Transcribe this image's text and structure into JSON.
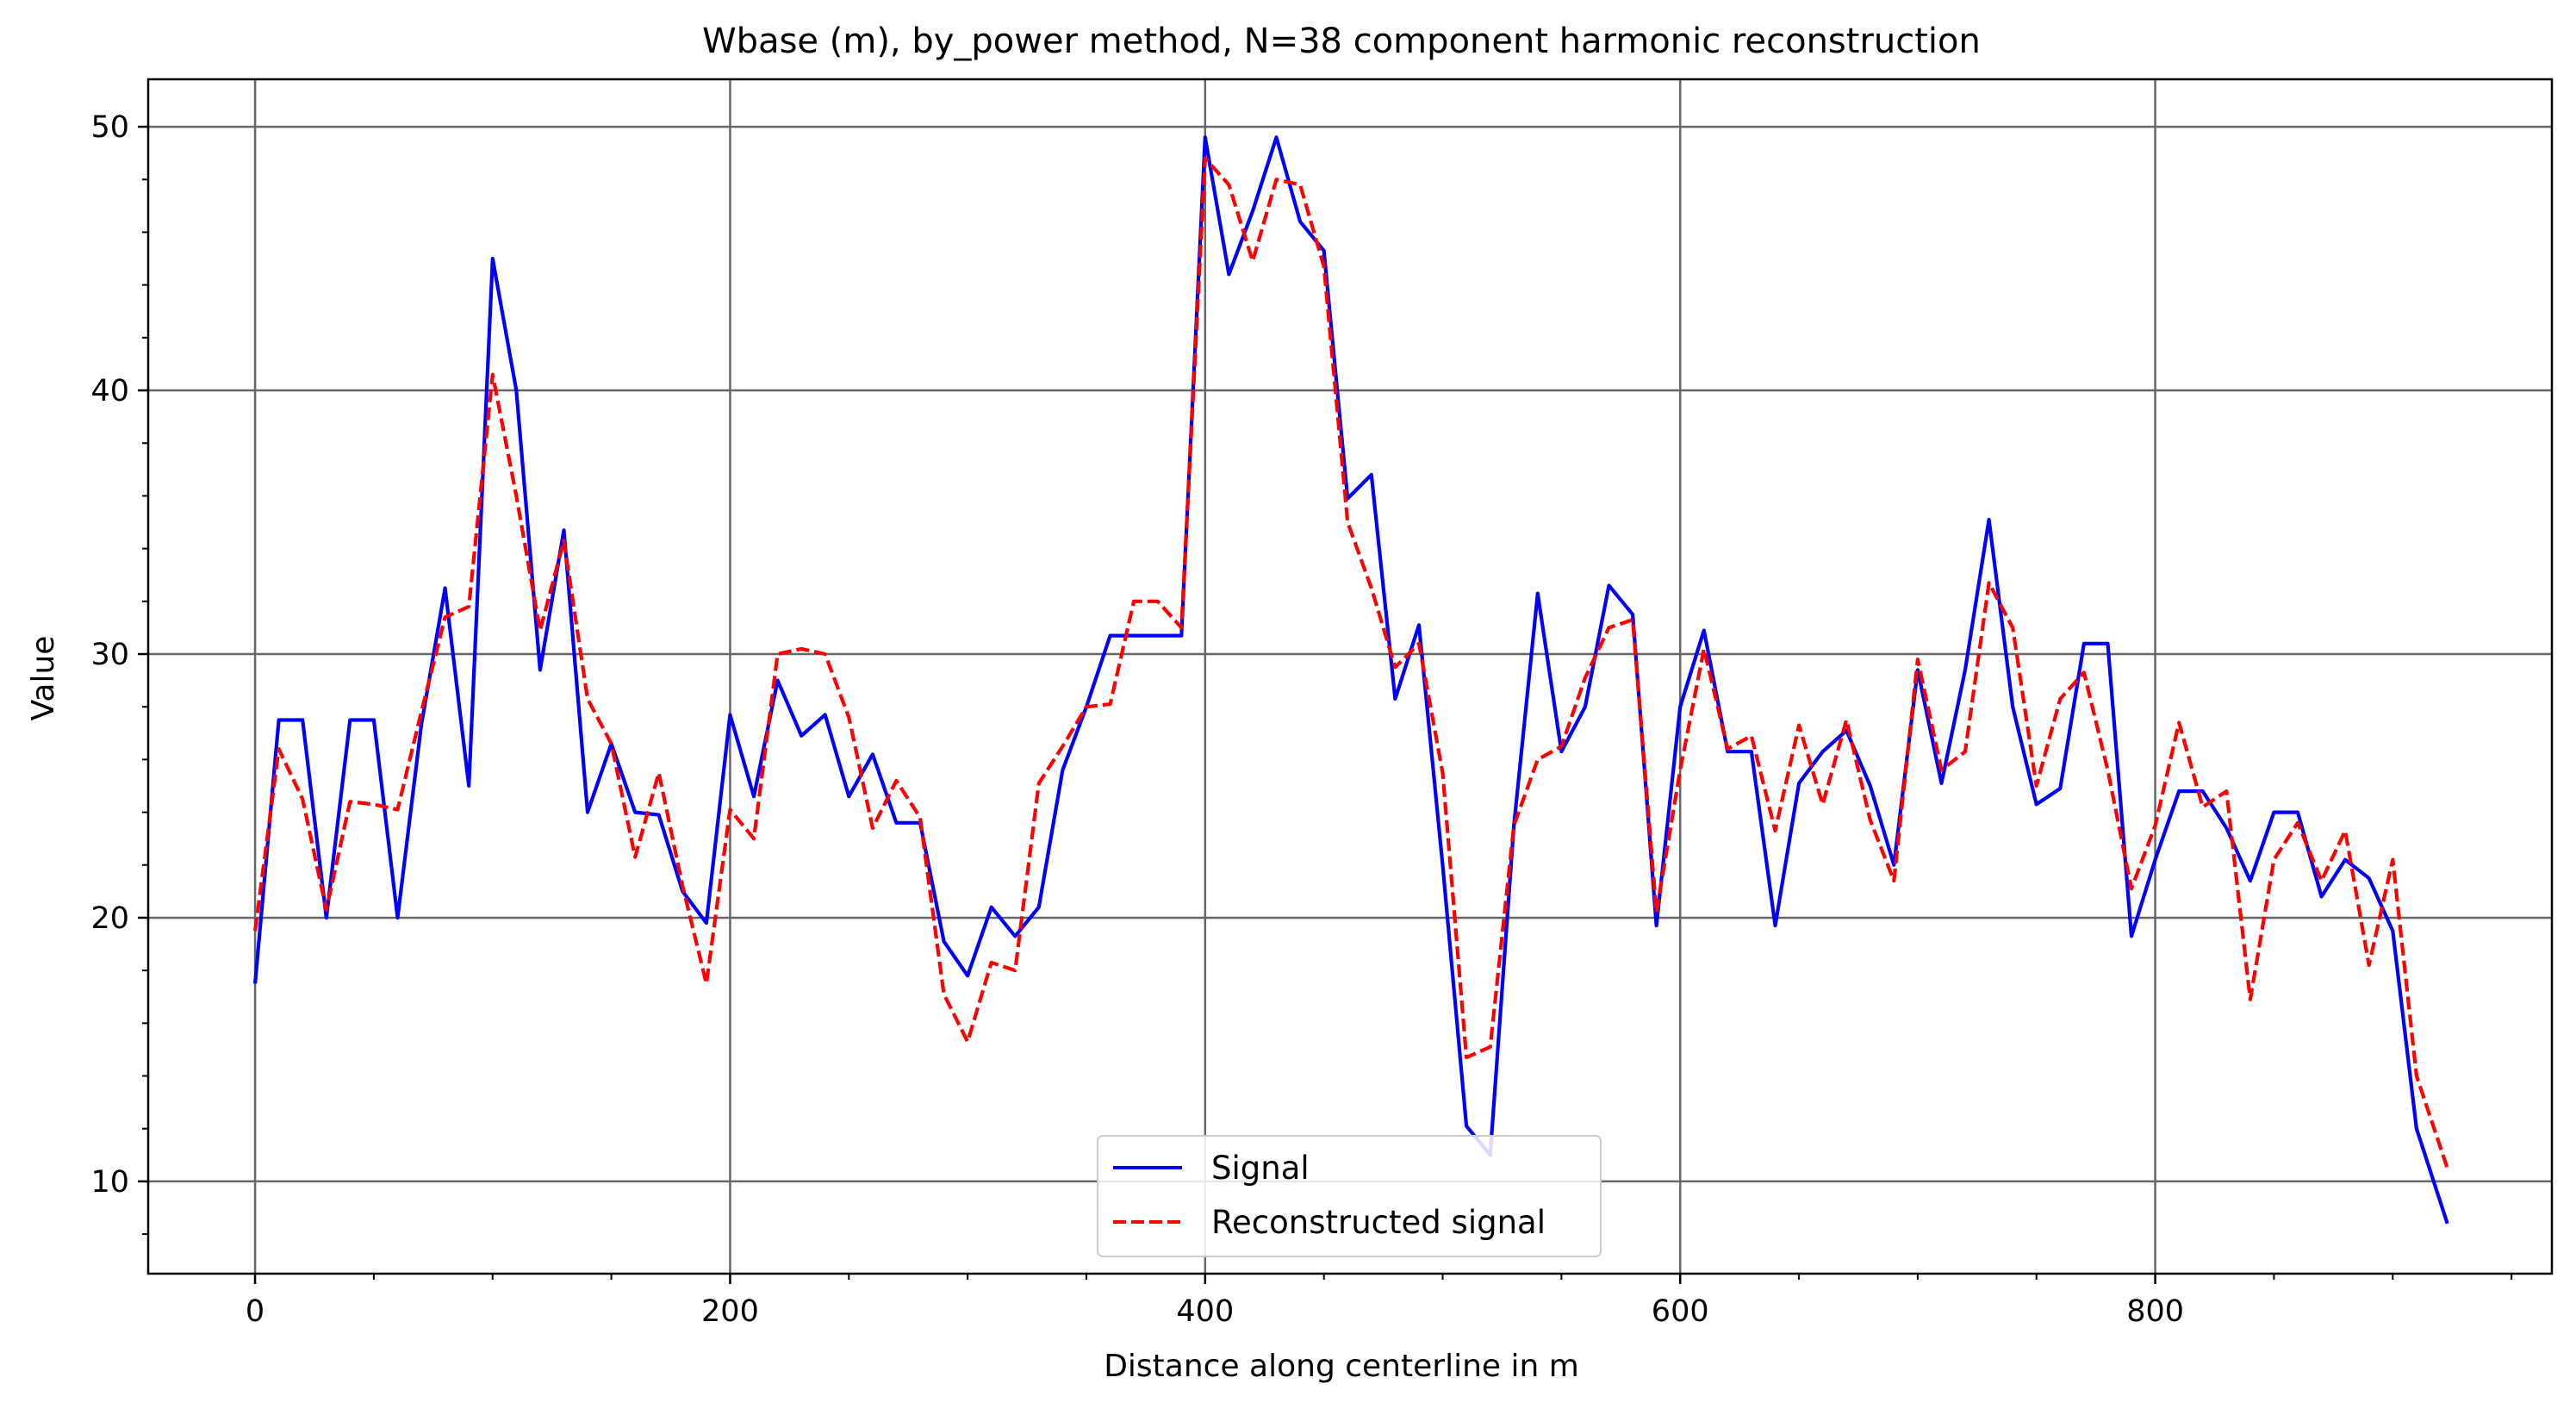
{
  "chart_data": {
    "type": "line",
    "title": "Wbase (m), by_power method, N=38 component harmonic reconstruction",
    "xlabel": "Distance along centerline in m",
    "ylabel": "Value",
    "xlim": [
      -45,
      967
    ],
    "ylim": [
      6.5,
      51.8
    ],
    "xticks": [
      0,
      200,
      400,
      600,
      800
    ],
    "yticks": [
      10,
      20,
      30,
      40,
      50
    ],
    "xminor_step": 50,
    "yminor_step": 2,
    "grid": true,
    "legend_position": "lower center",
    "series": [
      {
        "name": "Signal",
        "color": "#0000ff",
        "style": "solid",
        "x": [
          0,
          10,
          20,
          30,
          40,
          50,
          60,
          70,
          80,
          90,
          100,
          110,
          120,
          130,
          140,
          150,
          160,
          170,
          180,
          190,
          200,
          210,
          220,
          230,
          240,
          250,
          260,
          270,
          280,
          290,
          300,
          310,
          320,
          330,
          340,
          350,
          360,
          370,
          380,
          390,
          400,
          410,
          420,
          430,
          440,
          450,
          460,
          470,
          480,
          490,
          500,
          510,
          520,
          530,
          540,
          550,
          560,
          570,
          580,
          590,
          600,
          610,
          620,
          630,
          640,
          650,
          660,
          670,
          680,
          690,
          700,
          710,
          720,
          730,
          740,
          750,
          760,
          770,
          780,
          790,
          800,
          810,
          820,
          830,
          840,
          850,
          860,
          870,
          880,
          890,
          900,
          910,
          923
        ],
        "values": [
          17.5,
          27.5,
          27.5,
          20.0,
          27.5,
          27.5,
          20.0,
          27.3,
          32.5,
          25.0,
          45.0,
          40.0,
          29.4,
          34.7,
          24.0,
          26.6,
          24.0,
          23.9,
          21.0,
          19.8,
          27.7,
          24.6,
          29.0,
          26.9,
          27.7,
          24.6,
          26.2,
          23.6,
          23.6,
          19.1,
          17.8,
          20.4,
          19.3,
          20.4,
          25.6,
          28.0,
          30.7,
          30.7,
          30.7,
          30.7,
          49.6,
          44.4,
          46.8,
          49.6,
          46.4,
          45.3,
          35.9,
          36.8,
          28.3,
          31.1,
          22.0,
          12.1,
          11.0,
          23.5,
          32.3,
          26.3,
          28.0,
          32.6,
          31.5,
          19.7,
          28.0,
          30.9,
          26.3,
          26.3,
          19.7,
          25.1,
          26.3,
          27.1,
          25.0,
          22.0,
          29.4,
          25.1,
          29.4,
          35.1,
          28.0,
          24.3,
          24.9,
          30.4,
          30.4,
          19.3,
          22.2,
          24.8,
          24.8,
          23.4,
          21.4,
          24.0,
          24.0,
          20.8,
          22.2,
          21.5,
          19.5,
          12.0,
          8.4
        ]
      },
      {
        "name": "Reconstructed signal",
        "color": "#ff0000",
        "style": "dashed",
        "x": [
          0,
          10,
          20,
          30,
          40,
          50,
          60,
          70,
          80,
          90,
          100,
          110,
          120,
          130,
          140,
          150,
          160,
          170,
          180,
          190,
          200,
          210,
          220,
          230,
          240,
          250,
          260,
          270,
          280,
          290,
          300,
          310,
          320,
          330,
          340,
          350,
          360,
          370,
          380,
          390,
          400,
          410,
          420,
          430,
          440,
          450,
          460,
          470,
          480,
          490,
          500,
          510,
          520,
          530,
          540,
          550,
          560,
          570,
          580,
          590,
          600,
          610,
          620,
          630,
          640,
          650,
          660,
          670,
          680,
          690,
          700,
          710,
          720,
          730,
          740,
          750,
          760,
          770,
          780,
          790,
          800,
          810,
          820,
          830,
          840,
          850,
          860,
          870,
          880,
          890,
          900,
          910,
          923
        ],
        "values": [
          19.5,
          26.4,
          24.5,
          20.3,
          24.4,
          24.3,
          24.1,
          27.8,
          31.4,
          31.8,
          40.6,
          36.0,
          30.9,
          34.3,
          28.3,
          26.6,
          22.3,
          25.5,
          21.2,
          17.5,
          24.1,
          23.0,
          30.0,
          30.2,
          30.0,
          27.6,
          23.4,
          25.2,
          23.8,
          17.1,
          15.3,
          18.3,
          18.0,
          25.1,
          26.5,
          28.0,
          28.1,
          32.0,
          32.0,
          31.0,
          48.8,
          47.8,
          44.9,
          48.0,
          47.8,
          44.7,
          35.0,
          32.5,
          29.5,
          30.4,
          25.5,
          14.7,
          15.1,
          23.5,
          26.0,
          26.5,
          29.1,
          31.0,
          31.3,
          20.2,
          25.6,
          30.2,
          26.4,
          26.9,
          23.3,
          27.3,
          24.3,
          27.5,
          23.7,
          21.4,
          29.8,
          25.6,
          26.3,
          32.7,
          31.0,
          25.0,
          28.3,
          29.3,
          25.6,
          21.1,
          23.5,
          27.4,
          24.2,
          24.8,
          16.9,
          22.2,
          23.6,
          21.4,
          23.3,
          18.2,
          22.2,
          14.0,
          10.5
        ]
      }
    ]
  }
}
